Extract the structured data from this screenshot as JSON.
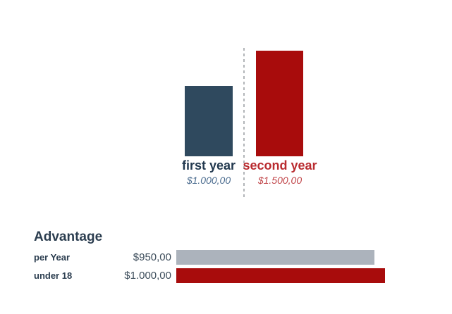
{
  "page": {
    "background": "#ffffff"
  },
  "chart_data": [
    {
      "type": "bar",
      "orientation": "vertical",
      "title": "",
      "categories": [
        "first year",
        "second year"
      ],
      "values": [
        1000,
        1500
      ],
      "value_labels": [
        "$1.000,00",
        "$1.500,00"
      ],
      "colors": [
        "#2f495e",
        "#a80c0c"
      ],
      "category_label_colors": [
        "#21384e",
        "#b92b2f"
      ],
      "value_label_colors": [
        "#4a6b8e",
        "#c04448"
      ],
      "ylim": [
        0,
        1500
      ],
      "grid": false,
      "divider": "vertical-dotted-line-between-bars",
      "divider_color": "#b2b5b8"
    },
    {
      "type": "bar",
      "orientation": "horizontal",
      "title": "Advantage",
      "title_color": "#2c3e50",
      "categories": [
        "per Year",
        "under 18"
      ],
      "values": [
        950,
        1000
      ],
      "value_labels": [
        "$950,00",
        "$1.000,00"
      ],
      "colors": [
        "#acb3bc",
        "#a80c0c"
      ],
      "xlim": [
        0,
        1000
      ],
      "grid": false,
      "legend": "none"
    }
  ]
}
